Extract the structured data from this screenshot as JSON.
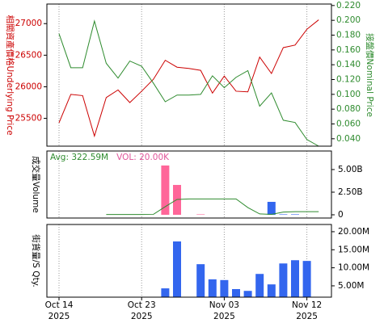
{
  "chart_data": [
    {
      "type": "line",
      "ylabel": "相關資產價格Underlying Price",
      "y2label": "接盤價Nominal Price",
      "ylim": [
        25060,
        27310
      ],
      "yticks": [
        25500,
        26000,
        26500,
        27000
      ],
      "y2lim": [
        0.03,
        0.222
      ],
      "y2ticks": [
        {
          "value": 0.04,
          "label": "0.040"
        },
        {
          "value": 0.06,
          "label": "0.060"
        },
        {
          "value": 0.08,
          "label": "0.080"
        },
        {
          "value": 0.1,
          "label": "0.100"
        },
        {
          "value": 0.12,
          "label": "0.120"
        },
        {
          "value": 0.14,
          "label": "0.140"
        },
        {
          "value": 0.16,
          "label": "0.160"
        },
        {
          "value": 0.18,
          "label": "0.180"
        },
        {
          "value": 0.2,
          "label": "0.200"
        },
        {
          "value": 0.22,
          "label": "0.220"
        }
      ],
      "series": [
        {
          "color": "#cc0000",
          "axis": "y",
          "values": [
            25430,
            25880,
            25860,
            25220,
            25830,
            25950,
            25750,
            25930,
            26120,
            26420,
            26310,
            26290,
            26260,
            25900,
            26170,
            25930,
            25920,
            26470,
            26210,
            26620,
            26660,
            26910,
            27060
          ]
        },
        {
          "color": "#2e8b2e",
          "axis": "y2",
          "values": [
            0.182,
            0.136,
            0.136,
            0.199,
            0.142,
            0.122,
            0.145,
            0.138,
            0.115,
            0.09,
            0.099,
            0.099,
            0.1,
            0.125,
            0.109,
            0.123,
            0.132,
            0.084,
            0.102,
            0.065,
            0.062,
            0.039,
            0.03
          ]
        }
      ]
    },
    {
      "type": "bar",
      "ylabel": "成交量Volume",
      "ylim": [
        -357000000,
        7050000000
      ],
      "yticks": [
        0,
        {
          "value": 2500000000,
          "label": "2.50B"
        },
        {
          "value": 5000000000,
          "label": "5.00B"
        }
      ],
      "annotations": [
        {
          "text": "Avg: 322.59M",
          "color": "#2e8b2e"
        },
        {
          "text": "VOL: 20.00K",
          "color": "#e0559a"
        }
      ],
      "series": [
        {
          "type": "bar",
          "color": "#ff6699",
          "values": [
            null,
            null,
            null,
            null,
            null,
            null,
            null,
            null,
            null,
            5450000000,
            3300000000,
            null,
            50000000,
            null,
            null,
            null,
            null,
            null,
            null,
            null,
            null,
            null,
            null
          ]
        },
        {
          "type": "bar",
          "color": "#3366ee",
          "values": [
            null,
            null,
            null,
            null,
            null,
            null,
            null,
            null,
            null,
            null,
            null,
            null,
            null,
            null,
            null,
            null,
            null,
            null,
            1430000000,
            50000000,
            50000000,
            null,
            null
          ]
        },
        {
          "type": "line",
          "color": "#2e8b2e",
          "values": [
            null,
            null,
            null,
            null,
            30000000,
            30000000,
            30000000,
            30000000,
            50000000,
            900000000,
            1700000000,
            1750000000,
            1750000000,
            1750000000,
            1750000000,
            1750000000,
            800000000,
            100000000,
            50000000,
            300000000,
            350000000,
            350000000,
            350000000
          ]
        }
      ]
    },
    {
      "type": "bar",
      "ylabel": "街貨量/S Qty.",
      "ylim": [
        1860000,
        22000000
      ],
      "yticks": [
        {
          "value": 5000000,
          "label": "5.00M"
        },
        {
          "value": 10000000,
          "label": "10.00M"
        },
        {
          "value": 15000000,
          "label": "15.00M"
        },
        {
          "value": 20000000,
          "label": "20.00M"
        }
      ],
      "categories": [
        "Oct 14\n2025",
        null,
        null,
        null,
        null,
        null,
        null,
        "Oct 23\n2025",
        null,
        null,
        null,
        null,
        null,
        null,
        "Nov 03\n2025",
        null,
        null,
        null,
        null,
        null,
        null,
        "Nov 12\n2025",
        null
      ],
      "series": [
        {
          "type": "bar",
          "color": "#3366ee",
          "values": [
            null,
            null,
            null,
            null,
            null,
            null,
            null,
            null,
            null,
            4300000,
            17300000,
            null,
            11000000,
            6800000,
            6600000,
            4100000,
            3600000,
            8300000,
            5400000,
            11200000,
            12100000,
            11900000,
            null
          ]
        }
      ]
    }
  ]
}
